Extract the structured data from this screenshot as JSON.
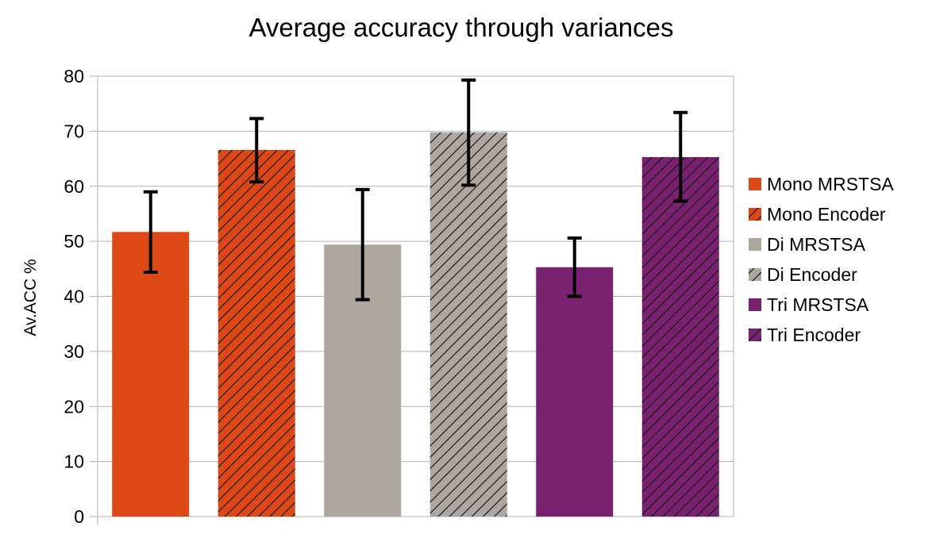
{
  "chart_data": {
    "type": "bar",
    "title": "Average accuracy through variances",
    "xlabel": "",
    "ylabel": "Av.ACC %",
    "ylim": [
      0,
      80
    ],
    "yticks": [
      0,
      10,
      20,
      30,
      40,
      50,
      60,
      70,
      80
    ],
    "grid": true,
    "legend_position": "right",
    "series": [
      {
        "name": "Mono MRSTSA",
        "value": 51.7,
        "error_low": 44.4,
        "error_high": 59.0,
        "color": "#dd4814",
        "hatched": false
      },
      {
        "name": "Mono Encoder",
        "value": 66.6,
        "error_low": 60.8,
        "error_high": 72.3,
        "color": "#dd4814",
        "hatched": true
      },
      {
        "name": "Di MRSTSA",
        "value": 49.4,
        "error_low": 39.4,
        "error_high": 59.4,
        "color": "#aea79f",
        "hatched": false
      },
      {
        "name": "Di Encoder",
        "value": 69.8,
        "error_low": 60.2,
        "error_high": 79.3,
        "color": "#aea79f",
        "hatched": true
      },
      {
        "name": "Tri MRSTSA",
        "value": 45.3,
        "error_low": 40.0,
        "error_high": 50.6,
        "color": "#77216f",
        "hatched": false
      },
      {
        "name": "Tri Encoder",
        "value": 65.3,
        "error_low": 57.3,
        "error_high": 73.4,
        "color": "#77216f",
        "hatched": true
      }
    ]
  }
}
